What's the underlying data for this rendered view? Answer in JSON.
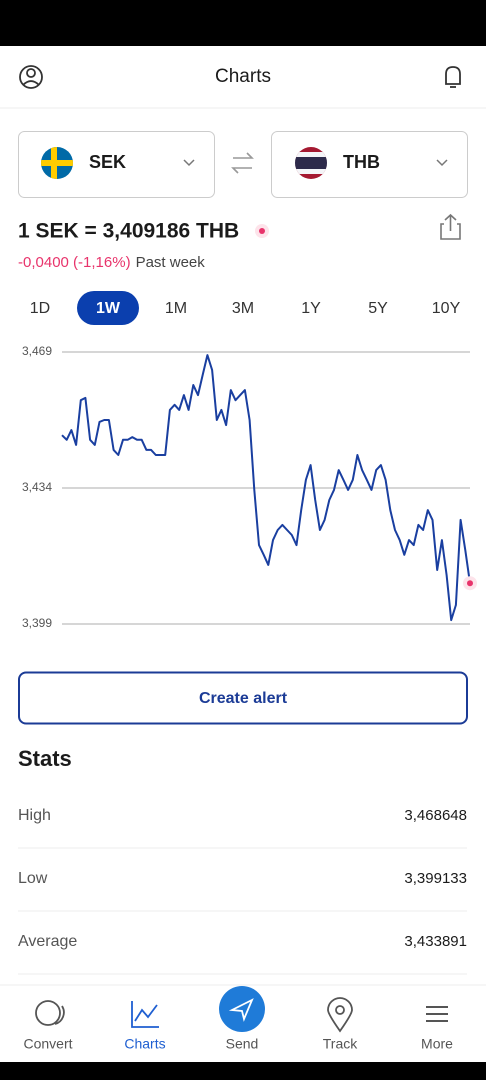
{
  "header": {
    "title": "Charts"
  },
  "converter": {
    "from": "SEK",
    "to": "THB",
    "rate": "1 SEK = 3,409186 THB",
    "change": "-0,0400 (-1,16%)",
    "period": "Past week"
  },
  "ranges": {
    "items": [
      "1D",
      "1W",
      "1M",
      "3M",
      "1Y",
      "5Y",
      "10Y"
    ],
    "selected": "1W"
  },
  "chart_data": {
    "type": "line",
    "ylim": [
      3.399,
      3.469
    ],
    "yticks": [
      {
        "value": 3.469,
        "label": "3,469"
      },
      {
        "value": 3.434,
        "label": "3,434"
      },
      {
        "value": 3.399,
        "label": "3,399"
      }
    ],
    "grid": true,
    "series": [
      {
        "name": "SEK/THB",
        "color": "#1a3fa0",
        "values": [
          3.4476,
          3.4464,
          3.4489,
          3.4451,
          3.4566,
          3.4572,
          3.4464,
          3.4451,
          3.451,
          3.4515,
          3.4515,
          3.4438,
          3.4425,
          3.4464,
          3.4464,
          3.4471,
          3.4464,
          3.4464,
          3.4438,
          3.4438,
          3.4425,
          3.4425,
          3.4425,
          3.4541,
          3.4554,
          3.4541,
          3.4579,
          3.4541,
          3.4605,
          3.4579,
          3.4631,
          3.4682,
          3.4644,
          3.4515,
          3.4541,
          3.4502,
          3.4592,
          3.4566,
          3.4579,
          3.4592,
          3.4515,
          3.4335,
          3.4193,
          3.4168,
          3.4142,
          3.4206,
          3.4232,
          3.4245,
          3.4232,
          3.4219,
          3.4193,
          3.4283,
          3.4361,
          3.4399,
          3.4309,
          3.4232,
          3.4258,
          3.4309,
          3.4335,
          3.4386,
          3.4361,
          3.4335,
          3.4361,
          3.4425,
          3.4386,
          3.4361,
          3.4335,
          3.4386,
          3.4399,
          3.4361,
          3.4283,
          3.4232,
          3.4206,
          3.4168,
          3.4206,
          3.4193,
          3.4245,
          3.4232,
          3.4283,
          3.4258,
          3.4129,
          3.4206,
          3.4116,
          3.4,
          3.4039,
          3.4258,
          3.418,
          3.4095
        ]
      }
    ]
  },
  "actions": {
    "create_alert": "Create alert"
  },
  "stats": {
    "title": "Stats",
    "rows": [
      [
        "High",
        "3,468648"
      ],
      [
        "Low",
        "3,399133"
      ],
      [
        "Average",
        "3,433891"
      ]
    ]
  },
  "nav": {
    "items": [
      "Convert",
      "Charts",
      "Send",
      "Track",
      "More"
    ],
    "active": "Charts"
  }
}
